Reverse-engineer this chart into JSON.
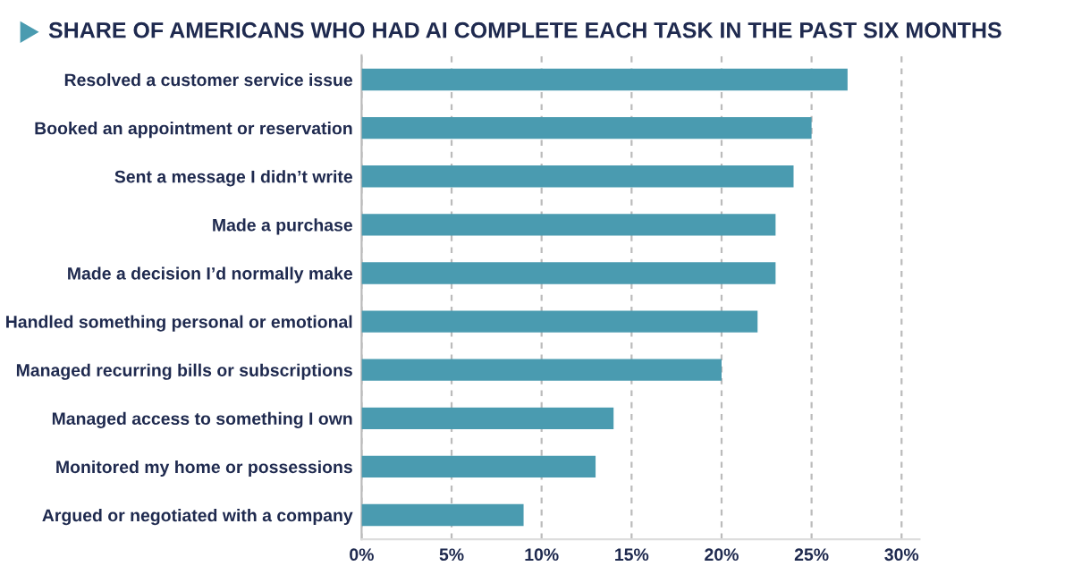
{
  "chart_data": {
    "type": "bar",
    "orientation": "horizontal",
    "title": "SHARE OF AMERICANS WHO HAD AI COMPLETE EACH TASK IN THE PAST SIX MONTHS",
    "categories": [
      "Resolved a customer service issue",
      "Booked an appointment or reservation",
      "Sent a message I didn’t write",
      "Made a purchase",
      "Made a decision I’d normally make",
      "Handled something personal or emotional",
      "Managed recurring bills or subscriptions",
      "Managed access to something I own",
      "Monitored my home or possessions",
      "Argued or negotiated with a company"
    ],
    "values": [
      27,
      25,
      24,
      23,
      23,
      22,
      20,
      14,
      13,
      9
    ],
    "color": "#4a9bb0",
    "xlim": [
      0,
      31
    ],
    "xticks": [
      {
        "value": 0,
        "label": "0%"
      },
      {
        "value": 5,
        "label": "5%"
      },
      {
        "value": 10,
        "label": "10%"
      },
      {
        "value": 15,
        "label": "15%"
      },
      {
        "value": 20,
        "label": "20%"
      },
      {
        "value": 25,
        "label": "25%"
      },
      {
        "value": 30,
        "label": "30%"
      }
    ],
    "grid": "x"
  }
}
